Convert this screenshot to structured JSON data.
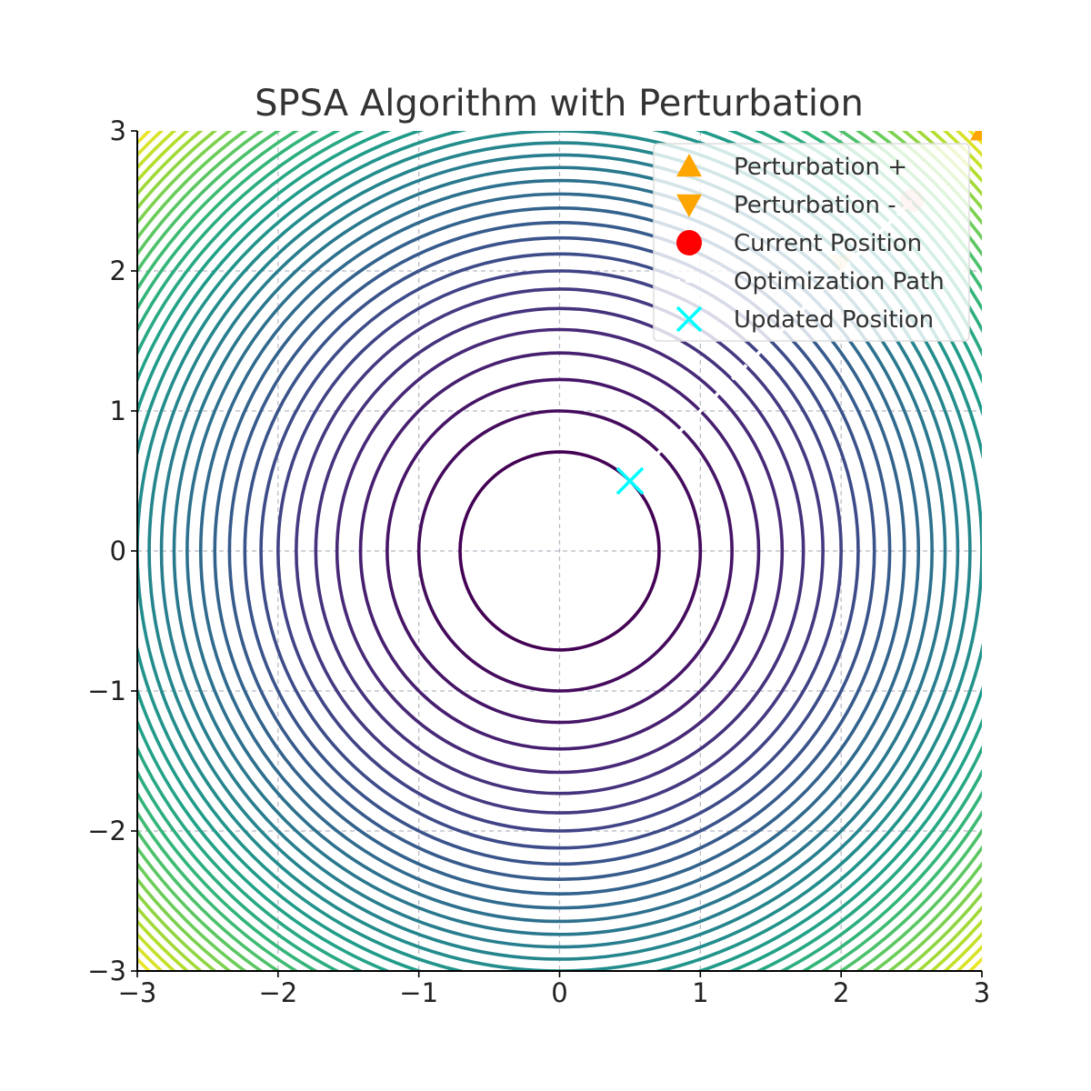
{
  "chart_data": {
    "type": "contour",
    "title": "SPSA Algorithm with Perturbation",
    "xlabel": "",
    "ylabel": "",
    "xlim": [
      -3,
      3
    ],
    "ylim": [
      -3,
      3
    ],
    "x_ticks": [
      -3,
      -2,
      -1,
      0,
      1,
      2,
      3
    ],
    "y_ticks": [
      -3,
      -2,
      -1,
      0,
      1,
      2,
      3
    ],
    "x_tick_labels": [
      "−3",
      "−2",
      "−1",
      "0",
      "1",
      "2",
      "3"
    ],
    "y_tick_labels": [
      "−3",
      "−2",
      "−1",
      "0",
      "1",
      "2",
      "3"
    ],
    "grid": true,
    "colormap": "viridis",
    "function": "x^2 + y^2",
    "contour_levels": {
      "start": 0.5,
      "step": 0.5,
      "count": 36
    },
    "legend": {
      "location": "upper right",
      "entries": [
        {
          "label": "Perturbation +",
          "marker": "triangle-up",
          "color": "#FFA500"
        },
        {
          "label": "Perturbation -",
          "marker": "triangle-down",
          "color": "#FFA500"
        },
        {
          "label": "Current Position",
          "marker": "circle",
          "color": "#FF0000"
        },
        {
          "label": "Optimization Path",
          "marker": "line-dashed",
          "color": "#FFFFFF"
        },
        {
          "label": "Updated Position",
          "marker": "x",
          "color": "#00FFFF"
        }
      ]
    },
    "series": [
      {
        "name": "Perturbation +",
        "color": "#FFA500",
        "points": [
          [
            3.0,
            3.0
          ]
        ]
      },
      {
        "name": "Perturbation -",
        "color": "#FFA500",
        "points": [
          [
            2.0,
            2.05
          ]
        ]
      },
      {
        "name": "Current Position",
        "color": "#FF0000",
        "points": [
          [
            2.5,
            2.5
          ]
        ]
      },
      {
        "name": "Optimization Path",
        "color": "#FFFFFF",
        "points": [
          [
            2.5,
            2.5
          ],
          [
            0.5,
            0.5
          ]
        ]
      },
      {
        "name": "Updated Position",
        "color": "#00FFFF",
        "points": [
          [
            0.5,
            0.5
          ]
        ]
      }
    ]
  }
}
